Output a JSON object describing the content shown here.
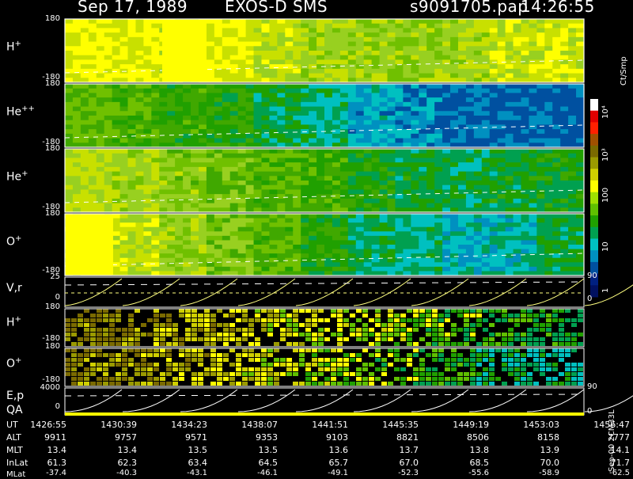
{
  "header": {
    "date": "Sep 17, 1989",
    "instrument": "EXOS-D SMS",
    "file": "s9091705.pap",
    "time": "14:26:55"
  },
  "colorbar": {
    "unit_label": "Ct/Smp",
    "tick_labels": [
      "10⁴",
      "10³",
      "100",
      "10",
      "1"
    ],
    "colors": [
      "#ffffff",
      "#e00000",
      "#ff2000",
      "#a05000",
      "#7a6a00",
      "#9a9a00",
      "#d0d000",
      "#ffff00",
      "#a0e000",
      "#60c000",
      "#20a000",
      "#00a050",
      "#00c0c0",
      "#0090c0",
      "#0050a0",
      "#002080",
      "#001060"
    ]
  },
  "chart_data": {
    "type": "heatmap",
    "panels": [
      {
        "id": "h-plus",
        "label": "H",
        "sup": "+",
        "ylim": [
          -180,
          180
        ],
        "palette": [
          "#ffff00",
          "#c8e000",
          "#98d020",
          "#70c000",
          "#40a800"
        ],
        "trend": [
          0.05,
          0.1,
          0.15,
          0.1,
          0.35,
          0.45,
          0.5,
          0.55,
          0.45,
          0.3,
          0.2
        ]
      },
      {
        "id": "he-plus-plus",
        "label": "He",
        "sup": "++",
        "ylim": [
          -180,
          180
        ],
        "palette": [
          "#70c000",
          "#40a800",
          "#20a000",
          "#00a050",
          "#00c0c0",
          "#0090c0",
          "#0050a0"
        ],
        "trend": [
          0.05,
          0.15,
          0.25,
          0.3,
          0.45,
          0.55,
          0.75,
          0.85,
          0.95,
          0.97,
          0.98
        ]
      },
      {
        "id": "he-plus",
        "label": "He",
        "sup": "+",
        "ylim": [
          -180,
          180
        ],
        "palette": [
          "#c8e000",
          "#98d020",
          "#70c000",
          "#40a800",
          "#20a000",
          "#00a050",
          "#00c0c0"
        ],
        "trend": [
          0.05,
          0.15,
          0.25,
          0.35,
          0.45,
          0.55,
          0.65,
          0.75,
          0.8,
          0.75,
          0.7
        ]
      },
      {
        "id": "o-plus",
        "label": "O",
        "sup": "+",
        "ylim": [
          -180,
          180
        ],
        "palette": [
          "#ffff00",
          "#c8e000",
          "#98d020",
          "#70c000",
          "#40a800",
          "#20a000",
          "#00a050",
          "#00c0c0",
          "#0090c0"
        ],
        "trend": [
          0.0,
          0.15,
          0.25,
          0.35,
          0.45,
          0.6,
          0.75,
          0.8,
          0.9,
          0.85,
          0.7
        ]
      }
    ],
    "small_panels": [
      {
        "id": "h-plus-2",
        "label": "H",
        "sup": "+",
        "ylim": [
          -180,
          180
        ],
        "palette": [
          "#7a6a00",
          "#9a9a00",
          "#d0d000",
          "#ffff00",
          "#60c000",
          "#20a000",
          "#00a050"
        ]
      },
      {
        "id": "o-plus-2",
        "label": "O",
        "sup": "+",
        "ylim": [
          -180,
          180
        ],
        "palette": [
          "#7a6a00",
          "#9a9a00",
          "#d0d000",
          "#ffff00",
          "#60c000",
          "#20a000",
          "#00a050",
          "#00c0c0"
        ]
      }
    ],
    "vr_panel": {
      "label": "V,r",
      "left_ticks": [
        "25",
        "0"
      ],
      "right_tick": "90"
    },
    "ep_panel": {
      "label": "E,p",
      "label2": "QA",
      "left_ticks": [
        "4000",
        "0"
      ],
      "right_tick": "90"
    },
    "x_axis": {
      "row_labels": [
        "UT",
        "ALT",
        "MLT",
        "InLat",
        "MLat"
      ],
      "ut": [
        "1426:55",
        "1430:39",
        "1434:23",
        "1438:07",
        "1441:51",
        "1445:35",
        "1449:19",
        "1453:03",
        "1456:47"
      ],
      "alt": [
        "9911",
        "9757",
        "9571",
        "9353",
        "9103",
        "8821",
        "8506",
        "8158",
        "7777"
      ],
      "mlt": [
        "13.4",
        "13.4",
        "13.5",
        "13.5",
        "13.6",
        "13.7",
        "13.8",
        "13.9",
        "14.1"
      ],
      "inlat": [
        "61.3",
        "62.3",
        "63.4",
        "64.5",
        "65.7",
        "67.0",
        "68.5",
        "70.0",
        "71.7"
      ],
      "mlat": [
        "-37.4",
        "-40.3",
        "-43.1",
        "-46.1",
        "-49.1",
        "-52.3",
        "-55.6",
        "-58.9",
        "-62.5"
      ]
    }
  },
  "footer_vertical": "Sep-00 2CM33L"
}
